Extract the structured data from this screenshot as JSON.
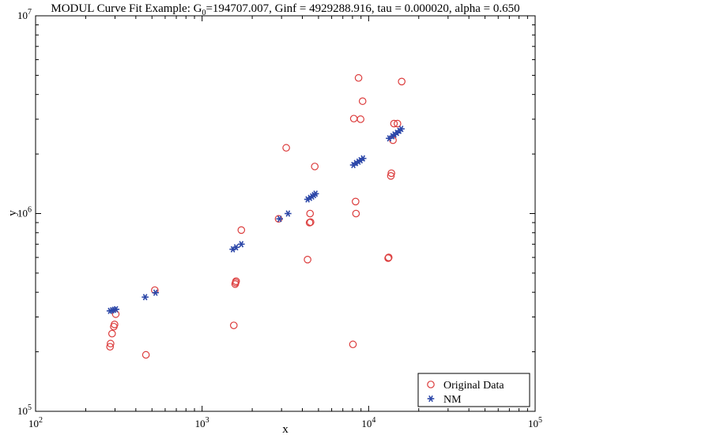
{
  "chart_data": {
    "type": "scatter",
    "title": {
      "prefix": "MODUL Curve Fit Example: G",
      "subscript": "0",
      "suffix": "=194707.007, Ginf = 4929288.916, tau = 0.000020, alpha = 0.650"
    },
    "xlabel": "x",
    "ylabel": "y",
    "x_scale": "log",
    "y_scale": "log",
    "xlim": [
      100,
      100000
    ],
    "ylim": [
      100000,
      10000000
    ],
    "x_ticks": [
      {
        "value": 100,
        "base": "10",
        "exp": "2"
      },
      {
        "value": 1000,
        "base": "10",
        "exp": "3"
      },
      {
        "value": 10000,
        "base": "10",
        "exp": "4"
      },
      {
        "value": 100000,
        "base": "10",
        "exp": "5"
      }
    ],
    "y_ticks": [
      {
        "value": 100000,
        "base": "10",
        "exp": "5"
      },
      {
        "value": 1000000,
        "base": "10",
        "exp": "6"
      },
      {
        "value": 10000000,
        "base": "10",
        "exp": "7"
      }
    ],
    "grid": false,
    "legend_position": "bottom-right",
    "series": [
      {
        "name": "Original Data",
        "marker": "circle",
        "color": "#dc3c3c",
        "points": [
          [
            280,
            212000
          ],
          [
            282,
            220000
          ],
          [
            288,
            247000
          ],
          [
            295,
            268000
          ],
          [
            298,
            275000
          ],
          [
            303,
            310000
          ],
          [
            460,
            193000
          ],
          [
            520,
            410000
          ],
          [
            1550,
            272000
          ],
          [
            1580,
            440000
          ],
          [
            1590,
            448000
          ],
          [
            1600,
            455000
          ],
          [
            1720,
            825000
          ],
          [
            2880,
            940000
          ],
          [
            3200,
            2150000
          ],
          [
            4300,
            585000
          ],
          [
            4420,
            900000
          ],
          [
            4450,
            1000000
          ],
          [
            4480,
            905000
          ],
          [
            4750,
            1730000
          ],
          [
            8050,
            218000
          ],
          [
            8150,
            3020000
          ],
          [
            8350,
            1150000
          ],
          [
            8400,
            1000000
          ],
          [
            8700,
            4850000
          ],
          [
            8950,
            3000000
          ],
          [
            9200,
            3700000
          ],
          [
            13100,
            595000
          ],
          [
            13200,
            600000
          ],
          [
            13600,
            1550000
          ],
          [
            13700,
            1600000
          ],
          [
            14000,
            2350000
          ],
          [
            14200,
            2850000
          ],
          [
            14900,
            2850000
          ],
          [
            15800,
            4650000
          ]
        ]
      },
      {
        "name": "NM",
        "marker": "asterisk",
        "color": "#2c47a8",
        "points": [
          [
            280,
            322000
          ],
          [
            288,
            324000
          ],
          [
            296,
            326000
          ],
          [
            304,
            328000
          ],
          [
            455,
            378000
          ],
          [
            525,
            398000
          ],
          [
            1530,
            660000
          ],
          [
            1600,
            675000
          ],
          [
            1720,
            700000
          ],
          [
            2920,
            940000
          ],
          [
            3280,
            1000000
          ],
          [
            4300,
            1180000
          ],
          [
            4450,
            1200000
          ],
          [
            4580,
            1220000
          ],
          [
            4700,
            1240000
          ],
          [
            4800,
            1260000
          ],
          [
            8100,
            1760000
          ],
          [
            8400,
            1800000
          ],
          [
            8700,
            1830000
          ],
          [
            8950,
            1860000
          ],
          [
            9250,
            1900000
          ],
          [
            13300,
            2400000
          ],
          [
            13900,
            2460000
          ],
          [
            14300,
            2510000
          ],
          [
            14800,
            2560000
          ],
          [
            15300,
            2620000
          ],
          [
            15700,
            2680000
          ]
        ]
      }
    ]
  }
}
